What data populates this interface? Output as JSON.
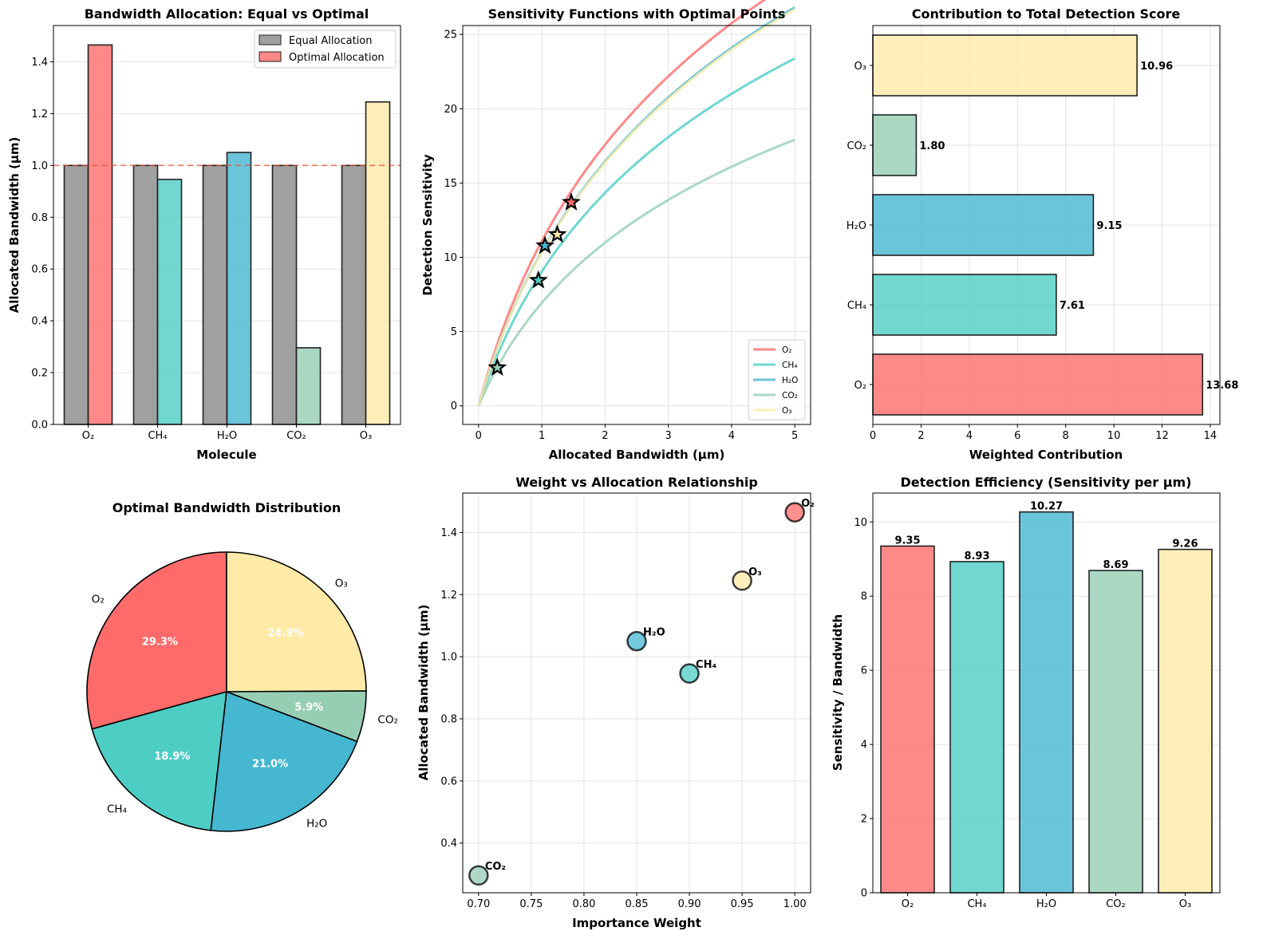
{
  "colors": {
    "O2": "#ff6b6b",
    "CH4": "#4ecdc4",
    "H2O": "#45b7d1",
    "CO2": "#96ceb4",
    "O3": "#ffeaa7",
    "equal": "#a0a0a0",
    "reference_line": "#e74c3c",
    "edge": "#222222"
  },
  "chart_data": [
    {
      "id": "allocation",
      "type": "bar",
      "title": "Bandwidth Allocation: Equal vs Optimal",
      "xlabel": "Molecule",
      "ylabel": "Allocated Bandwidth (μm)",
      "categories": [
        "O₂",
        "CH₄",
        "H₂O",
        "CO₂",
        "O₃"
      ],
      "series": [
        {
          "name": "Equal Allocation",
          "values": [
            1.0,
            1.0,
            1.0,
            1.0,
            1.0
          ]
        },
        {
          "name": "Optimal Allocation",
          "values": [
            1.465,
            0.946,
            1.05,
            0.296,
            1.245
          ]
        }
      ],
      "reference_line": 1.0,
      "ylim": [
        0,
        1.54
      ],
      "yticks": [
        "0.0",
        "0.2",
        "0.4",
        "0.6",
        "0.8",
        "1.0",
        "1.2",
        "1.4"
      ],
      "legend": "top-right"
    },
    {
      "id": "sensitivity",
      "type": "line",
      "title": "Sensitivity Functions with Optimal Points",
      "xlabel": "Allocated Bandwidth (μm)",
      "ylabel": "Detection Sensitivity",
      "xlim": [
        -0.25,
        5.25
      ],
      "ylim": [
        -1.25,
        25.6
      ],
      "xticks": [
        "0",
        "1",
        "2",
        "3",
        "4",
        "5"
      ],
      "yticks": [
        "0",
        "5",
        "10",
        "15",
        "20",
        "25"
      ],
      "series": [
        {
          "name": "O₂",
          "scale": 16.0,
          "optimal_x": 1.465,
          "optimal_y": 13.7
        },
        {
          "name": "CH₄",
          "scale": 13.05,
          "optimal_x": 0.946,
          "optimal_y": 8.45
        },
        {
          "name": "H₂O",
          "scale": 14.97,
          "optimal_x": 1.05,
          "optimal_y": 10.78
        },
        {
          "name": "CO₂",
          "scale": 10.0,
          "optimal_x": 0.296,
          "optimal_y": 2.57
        },
        {
          "name": "O₃",
          "scale": 14.9,
          "optimal_x": 1.245,
          "optimal_y": 11.53
        }
      ],
      "curve_formula": "scale * ln(1 + x)",
      "legend": "bottom-right"
    },
    {
      "id": "contribution",
      "type": "bar",
      "orientation": "horizontal",
      "title": "Contribution to Total Detection Score",
      "xlabel": "Weighted Contribution",
      "ylabel": "",
      "categories": [
        "O₂",
        "CH₄",
        "H₂O",
        "CO₂",
        "O₃"
      ],
      "values": [
        13.68,
        7.61,
        9.15,
        1.8,
        10.96
      ],
      "labels": [
        "13.68",
        "7.61",
        "9.15",
        "1.80",
        "10.96"
      ],
      "xlim": [
        0,
        14.4
      ],
      "xticks": [
        "0",
        "2",
        "4",
        "6",
        "8",
        "10",
        "12",
        "14"
      ]
    },
    {
      "id": "distribution",
      "type": "pie",
      "title": "Optimal Bandwidth Distribution",
      "categories": [
        "O₂",
        "CH₄",
        "H₂O",
        "CO₂",
        "O₃"
      ],
      "values": [
        29.3,
        18.9,
        21.0,
        5.9,
        24.9
      ],
      "labels": [
        "29.3%",
        "18.9%",
        "21.0%",
        "5.9%",
        "24.9%"
      ],
      "start_angle_deg": 90
    },
    {
      "id": "weight_vs_allocation",
      "type": "scatter",
      "title": "Weight vs Allocation Relationship",
      "xlabel": "Importance Weight",
      "ylabel": "Allocated Bandwidth (μm)",
      "points": [
        {
          "label": "O₂",
          "x": 1.0,
          "y": 1.465
        },
        {
          "label": "CH₄",
          "x": 0.9,
          "y": 0.946
        },
        {
          "label": "H₂O",
          "x": 0.85,
          "y": 1.05
        },
        {
          "label": "CO₂",
          "x": 0.7,
          "y": 0.296
        },
        {
          "label": "O₃",
          "x": 0.95,
          "y": 1.245
        }
      ],
      "xlim": [
        0.685,
        1.015
      ],
      "ylim": [
        0.24,
        1.527
      ],
      "xticks": [
        "0.70",
        "0.75",
        "0.80",
        "0.85",
        "0.90",
        "0.95",
        "1.00"
      ],
      "yticks": [
        "0.4",
        "0.6",
        "0.8",
        "1.0",
        "1.2",
        "1.4"
      ]
    },
    {
      "id": "efficiency",
      "type": "bar",
      "title": "Detection Efficiency (Sensitivity per μm)",
      "xlabel": "",
      "ylabel": "Sensitivity / Bandwidth",
      "categories": [
        "O₂",
        "CH₄",
        "H₂O",
        "CO₂",
        "O₃"
      ],
      "values": [
        9.35,
        8.93,
        10.27,
        8.69,
        9.26
      ],
      "labels": [
        "9.35",
        "8.93",
        "10.27",
        "8.69",
        "9.26"
      ],
      "ylim": [
        0,
        10.78
      ],
      "yticks": [
        "0",
        "2",
        "4",
        "6",
        "8",
        "10"
      ]
    }
  ]
}
